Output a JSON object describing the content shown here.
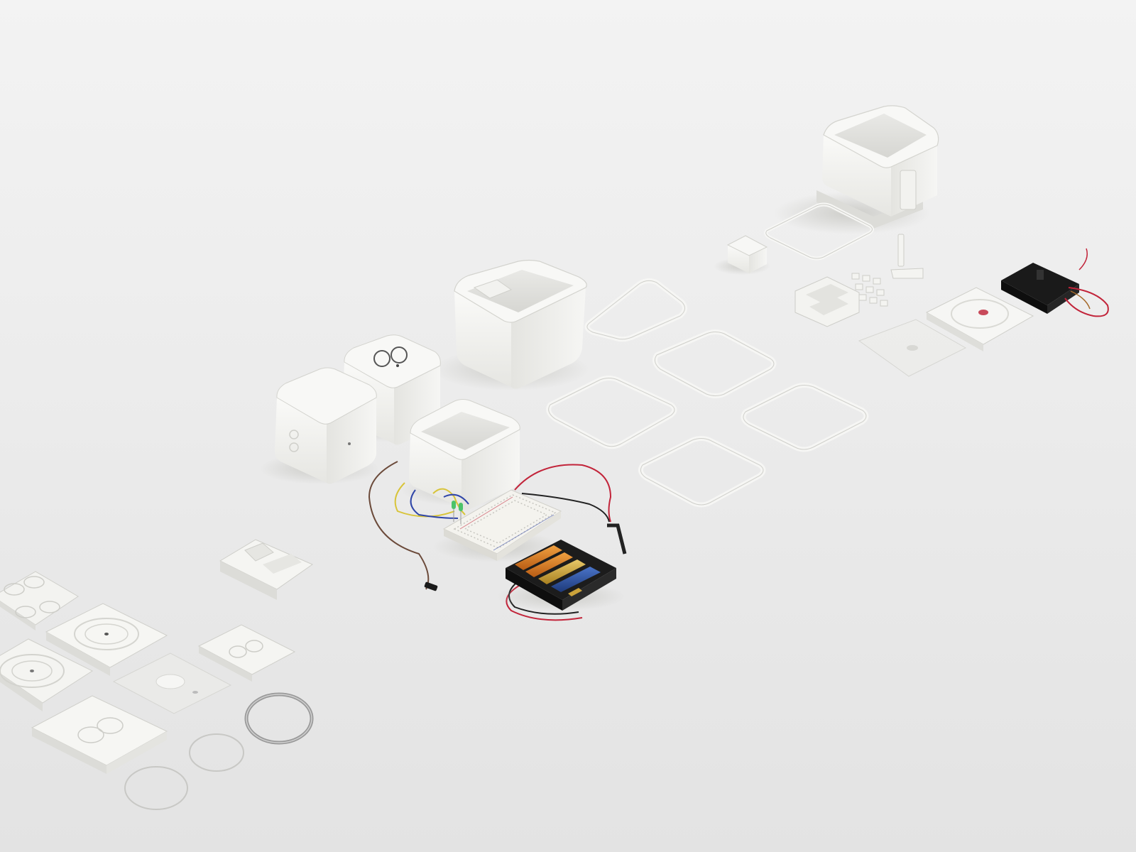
{
  "scene": {
    "description_type": "photograph",
    "colors": {
      "background_top": "#f2f2f2",
      "background_bottom": "#e4e4e4",
      "part_white": "#f7f7f5",
      "part_shade": "#dcdcd8",
      "part_edge": "#c9c9c4",
      "shadow": "#bdbdb8",
      "breadboard": "#f4f3ee",
      "battery_holder": "#1c1c1c",
      "battery_orange": "#d9771f",
      "battery_gold": "#caa23a",
      "battery_blue": "#2a4fa0",
      "wire_red": "#c2243a",
      "wire_black": "#222222",
      "wire_yellow": "#d8c43a",
      "wire_blue": "#3046a8",
      "wire_brown": "#6b4a3a",
      "led_green": "#4cc36a",
      "metal_ring": "#9a9a9a",
      "motor_black": "#151515"
    }
  }
}
